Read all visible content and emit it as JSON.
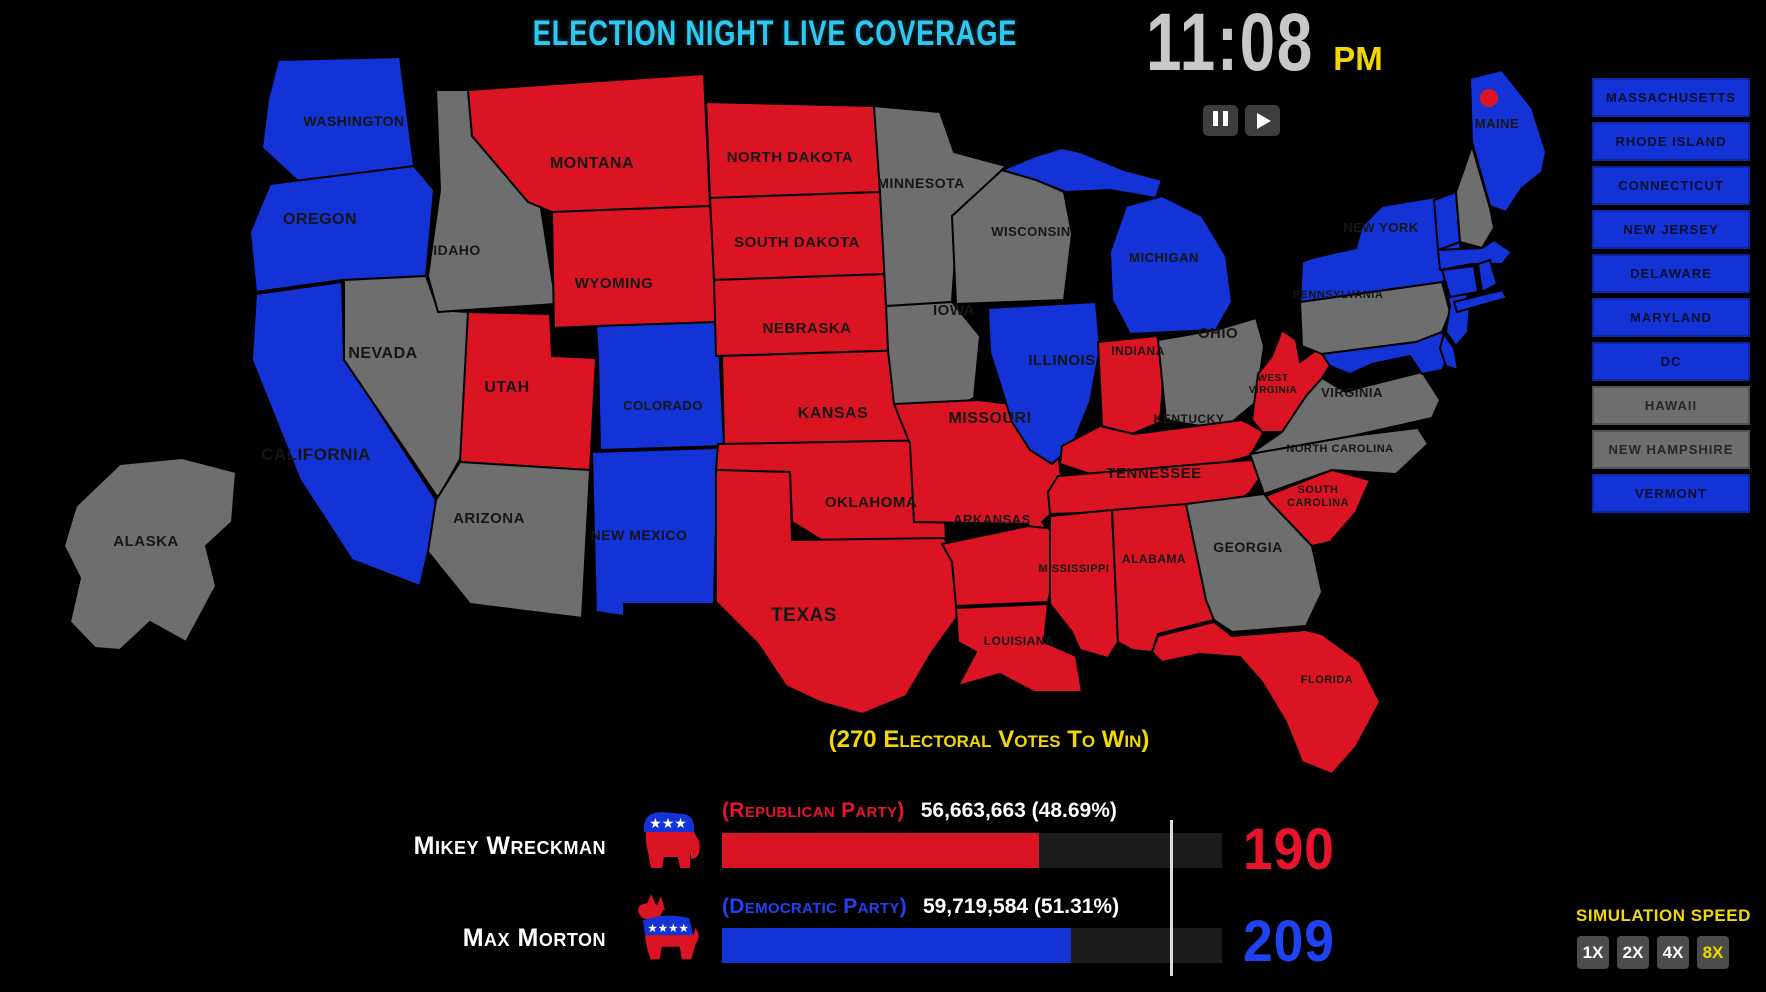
{
  "header": {
    "title": "ELECTION NIGHT LIVE COVERAGE",
    "clock": {
      "time": "11:08",
      "period": "PM"
    }
  },
  "map": {
    "colors": {
      "republican": "#da1423",
      "democratic": "#1433d6",
      "undecided": "#6e6e6e"
    },
    "maine_marker": {
      "party": "republican"
    },
    "states": [
      {
        "id": "wa",
        "label": "WASHINGTON",
        "party": "democratic"
      },
      {
        "id": "or",
        "label": "OREGON",
        "party": "democratic"
      },
      {
        "id": "ca",
        "label": "CALIFORNIA",
        "party": "democratic"
      },
      {
        "id": "nv",
        "label": "NEVADA",
        "party": "undecided"
      },
      {
        "id": "id",
        "label": "IDAHO",
        "party": "undecided"
      },
      {
        "id": "mt",
        "label": "MONTANA",
        "party": "republican"
      },
      {
        "id": "wy",
        "label": "WYOMING",
        "party": "republican"
      },
      {
        "id": "ut",
        "label": "UTAH",
        "party": "republican"
      },
      {
        "id": "co",
        "label": "COLORADO",
        "party": "democratic"
      },
      {
        "id": "az",
        "label": "ARIZONA",
        "party": "undecided"
      },
      {
        "id": "nm",
        "label": "NEW MEXICO",
        "party": "democratic"
      },
      {
        "id": "nd",
        "label": "NORTH DAKOTA",
        "party": "republican"
      },
      {
        "id": "sd",
        "label": "SOUTH DAKOTA",
        "party": "republican"
      },
      {
        "id": "ne",
        "label": "NEBRASKA",
        "party": "republican"
      },
      {
        "id": "ks",
        "label": "KANSAS",
        "party": "republican"
      },
      {
        "id": "ok",
        "label": "OKLAHOMA",
        "party": "republican"
      },
      {
        "id": "tx",
        "label": "TEXAS",
        "party": "republican"
      },
      {
        "id": "mn",
        "label": "MINNESOTA",
        "party": "undecided"
      },
      {
        "id": "ia",
        "label": "IOWA",
        "party": "undecided"
      },
      {
        "id": "mo",
        "label": "MISSOURI",
        "party": "republican"
      },
      {
        "id": "ar",
        "label": "ARKANSAS",
        "party": "republican"
      },
      {
        "id": "la",
        "label": "LOUISIANA",
        "party": "republican"
      },
      {
        "id": "wi",
        "label": "WISCONSIN",
        "party": "undecided"
      },
      {
        "id": "il",
        "label": "ILLINOIS",
        "party": "democratic"
      },
      {
        "id": "mi_up",
        "label": "",
        "party": "democratic"
      },
      {
        "id": "mi",
        "label": "MICHIGAN",
        "party": "democratic"
      },
      {
        "id": "in",
        "label": "INDIANA",
        "party": "republican"
      },
      {
        "id": "oh",
        "label": "OHIO",
        "party": "undecided"
      },
      {
        "id": "ky",
        "label": "KENTUCKY",
        "party": "republican"
      },
      {
        "id": "tn",
        "label": "TENNESSEE",
        "party": "republican"
      },
      {
        "id": "ms",
        "label": "MISSISSIPPI",
        "party": "republican"
      },
      {
        "id": "al",
        "label": "ALABAMA",
        "party": "republican"
      },
      {
        "id": "ga",
        "label": "GEORGIA",
        "party": "undecided"
      },
      {
        "id": "sc",
        "label": "SOUTH CAROLINA",
        "party": "republican"
      },
      {
        "id": "nc",
        "label": "NORTH CAROLINA",
        "party": "undecided"
      },
      {
        "id": "va",
        "label": "VIRGINIA",
        "party": "undecided"
      },
      {
        "id": "wv",
        "label": "WEST VIRGINIA",
        "party": "republican"
      },
      {
        "id": "pa",
        "label": "PENNSYLVANIA",
        "party": "undecided"
      },
      {
        "id": "ny",
        "label": "NEW YORK",
        "party": "democratic"
      },
      {
        "id": "nj",
        "label": "",
        "party": "democratic"
      },
      {
        "id": "md",
        "label": "",
        "party": "democratic"
      },
      {
        "id": "de",
        "label": "",
        "party": "democratic"
      },
      {
        "id": "vt",
        "label": "",
        "party": "democratic"
      },
      {
        "id": "nh",
        "label": "",
        "party": "undecided"
      },
      {
        "id": "me",
        "label": "MAINE",
        "party": "democratic"
      },
      {
        "id": "ma",
        "label": "",
        "party": "democratic"
      },
      {
        "id": "ct",
        "label": "",
        "party": "democratic"
      },
      {
        "id": "ri",
        "label": "",
        "party": "democratic"
      },
      {
        "id": "li",
        "label": "",
        "party": "democratic"
      },
      {
        "id": "fl",
        "label": "FLORIDA",
        "party": "republican"
      },
      {
        "id": "ak",
        "label": "ALASKA",
        "party": "undecided"
      }
    ]
  },
  "sidebar": {
    "items": [
      {
        "label": "MASSACHUSETTS",
        "party": "democratic"
      },
      {
        "label": "RHODE ISLAND",
        "party": "democratic"
      },
      {
        "label": "CONNECTICUT",
        "party": "democratic"
      },
      {
        "label": "NEW JERSEY",
        "party": "democratic"
      },
      {
        "label": "DELAWARE",
        "party": "democratic"
      },
      {
        "label": "MARYLAND",
        "party": "democratic"
      },
      {
        "label": "DC",
        "party": "democratic"
      },
      {
        "label": "HAWAII",
        "party": "undecided"
      },
      {
        "label": "NEW HAMPSHIRE",
        "party": "undecided"
      },
      {
        "label": "VERMONT",
        "party": "democratic"
      }
    ]
  },
  "scoreboard": {
    "target_text": "(270 Electoral Votes To Win)",
    "candidates": [
      {
        "name": "Mikey Wreckman",
        "party": "republican",
        "party_label": "(Republican Party)",
        "votes": "56,663,663 (48.69%)",
        "electoral_votes": "190",
        "color": "#e8142b",
        "bar_pct": 63.4
      },
      {
        "name": "Max Morton",
        "party": "democratic",
        "party_label": "(Democratic Party)",
        "votes": "59,719,584 (51.31%)",
        "electoral_votes": "209",
        "color": "#1e43f5",
        "bar_pct": 69.8
      }
    ]
  },
  "icons": {
    "pause": "pause-icon",
    "play": "play-icon",
    "republican": "republican-elephant-icon",
    "democratic": "democratic-donkey-icon"
  },
  "simulation": {
    "label": "SIMULATION SPEED",
    "speeds": [
      "1X",
      "2X",
      "4X",
      "8X"
    ],
    "active": "8X"
  }
}
